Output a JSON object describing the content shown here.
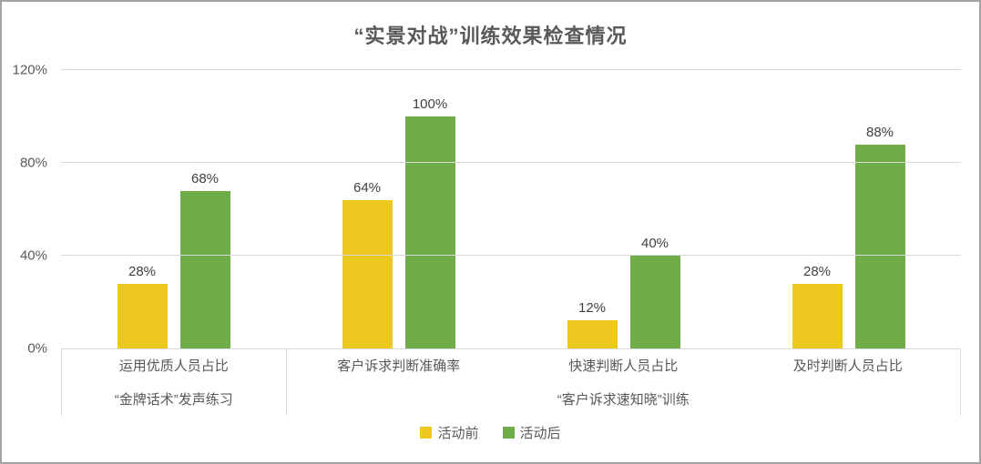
{
  "chart_data": {
    "type": "bar",
    "title": "“实景对战”训练效果检查情况",
    "categories": [
      "运用优质人员占比",
      "客户诉求判断准确率",
      "快速判断人员占比",
      "及时判断人员占比"
    ],
    "series": [
      {
        "name": "活动前",
        "color": "#EDC920",
        "values": [
          28,
          64,
          12,
          28
        ]
      },
      {
        "name": "活动后",
        "color": "#70AC4A",
        "values": [
          68,
          100,
          40,
          88
        ]
      }
    ],
    "data_label_format": "percent",
    "data_labels": {
      "before": [
        "28%",
        "64%",
        "12%",
        "28%"
      ],
      "after": [
        "68%",
        "100%",
        "40%",
        "88%"
      ]
    },
    "group_labels": [
      {
        "label": "“金牌话术”发声练习",
        "spans_categories": [
          "运用优质人员占比"
        ]
      },
      {
        "label": "“客户诉求速知晓”训练",
        "spans_categories": [
          "客户诉求判断准确率",
          "快速判断人员占比",
          "及时判断人员占比"
        ]
      }
    ],
    "y_axis": {
      "ticks": [
        "0%",
        "40%",
        "80%",
        "120%"
      ],
      "min": 0,
      "max": 120,
      "grid": true
    },
    "legend": {
      "position": "bottom",
      "entries": [
        "活动前",
        "活动后"
      ]
    },
    "style": {
      "grid_color": "#d9d9d9",
      "axis_text_color": "#595959",
      "data_label_color": "#404040",
      "title_color": "#595959",
      "frame_border_color": "#a3a3a3"
    }
  }
}
